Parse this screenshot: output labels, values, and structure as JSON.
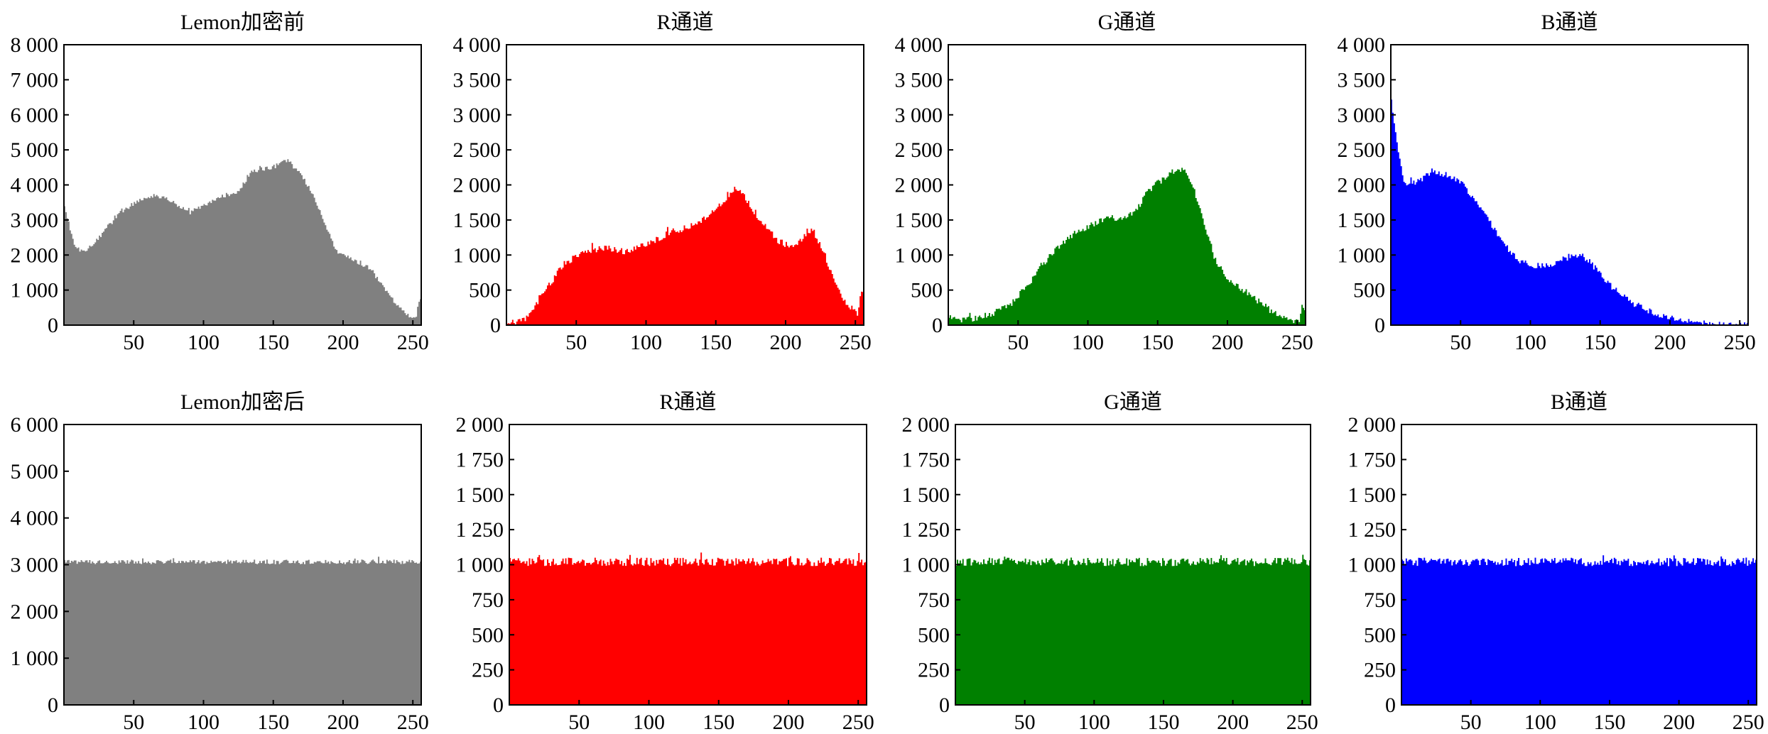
{
  "chart_data": [
    {
      "type": "histogram",
      "title": "Lemon加密前",
      "color": "#808080",
      "xlim": [
        0,
        256
      ],
      "ylim": [
        0,
        8000
      ],
      "xticks": [
        50,
        100,
        150,
        200,
        250
      ],
      "xtick_labels": [
        "50",
        "100",
        "150",
        "200",
        "250"
      ],
      "yticks": [
        0,
        1000,
        2000,
        3000,
        4000,
        5000,
        6000,
        7000,
        8000
      ],
      "ytick_labels": [
        "0",
        "1 000",
        "2 000",
        "3 000",
        "4 000",
        "5 000",
        "6 000",
        "7 000",
        "8 000"
      ],
      "profile": [
        [
          0,
          3400
        ],
        [
          3,
          3000
        ],
        [
          8,
          2200
        ],
        [
          15,
          2100
        ],
        [
          25,
          2500
        ],
        [
          40,
          3200
        ],
        [
          55,
          3600
        ],
        [
          65,
          3700
        ],
        [
          75,
          3600
        ],
        [
          90,
          3200
        ],
        [
          100,
          3400
        ],
        [
          115,
          3700
        ],
        [
          125,
          3800
        ],
        [
          135,
          4400
        ],
        [
          150,
          4500
        ],
        [
          160,
          4700
        ],
        [
          170,
          4300
        ],
        [
          180,
          3600
        ],
        [
          195,
          2100
        ],
        [
          210,
          1800
        ],
        [
          220,
          1600
        ],
        [
          230,
          1000
        ],
        [
          240,
          500
        ],
        [
          248,
          250
        ],
        [
          253,
          250
        ],
        [
          254,
          700
        ],
        [
          256,
          700
        ]
      ],
      "noise": 60
    },
    {
      "type": "histogram",
      "title": "R通道",
      "color": "#ff0000",
      "xlim": [
        0,
        256
      ],
      "ylim": [
        0,
        4000
      ],
      "xticks": [
        50,
        100,
        150,
        200,
        250
      ],
      "xtick_labels": [
        "50",
        "100",
        "150",
        "200",
        "250"
      ],
      "yticks": [
        0,
        500,
        1000,
        1500,
        2000,
        2500,
        3000,
        3500,
        4000
      ],
      "ytick_labels": [
        "0",
        "500",
        "1 000",
        "1 500",
        "2 000",
        "2 500",
        "3 000",
        "3 500",
        "4 000"
      ],
      "profile": [
        [
          0,
          0
        ],
        [
          5,
          20
        ],
        [
          15,
          100
        ],
        [
          25,
          400
        ],
        [
          40,
          850
        ],
        [
          55,
          1050
        ],
        [
          70,
          1100
        ],
        [
          85,
          1050
        ],
        [
          100,
          1150
        ],
        [
          115,
          1300
        ],
        [
          130,
          1400
        ],
        [
          145,
          1550
        ],
        [
          155,
          1750
        ],
        [
          163,
          1950
        ],
        [
          170,
          1850
        ],
        [
          180,
          1550
        ],
        [
          195,
          1200
        ],
        [
          205,
          1100
        ],
        [
          215,
          1300
        ],
        [
          220,
          1350
        ],
        [
          228,
          1000
        ],
        [
          235,
          600
        ],
        [
          245,
          250
        ],
        [
          252,
          150
        ],
        [
          254,
          450
        ],
        [
          256,
          450
        ]
      ],
      "noise": 45
    },
    {
      "type": "histogram",
      "title": "G通道",
      "color": "#008000",
      "xlim": [
        0,
        256
      ],
      "ylim": [
        0,
        4000
      ],
      "xticks": [
        50,
        100,
        150,
        200,
        250
      ],
      "xtick_labels": [
        "50",
        "100",
        "150",
        "200",
        "250"
      ],
      "yticks": [
        0,
        500,
        1000,
        1500,
        2000,
        2500,
        3000,
        3500,
        4000
      ],
      "ytick_labels": [
        "0",
        "500",
        "1 000",
        "1 500",
        "2 000",
        "2 500",
        "3 000",
        "3 500",
        "4 000"
      ],
      "profile": [
        [
          0,
          80
        ],
        [
          10,
          80
        ],
        [
          20,
          100
        ],
        [
          30,
          150
        ],
        [
          45,
          300
        ],
        [
          60,
          650
        ],
        [
          75,
          1050
        ],
        [
          90,
          1300
        ],
        [
          105,
          1450
        ],
        [
          115,
          1550
        ],
        [
          125,
          1500
        ],
        [
          135,
          1650
        ],
        [
          145,
          1950
        ],
        [
          155,
          2100
        ],
        [
          165,
          2250
        ],
        [
          172,
          2150
        ],
        [
          180,
          1700
        ],
        [
          190,
          1000
        ],
        [
          200,
          650
        ],
        [
          215,
          450
        ],
        [
          225,
          300
        ],
        [
          235,
          150
        ],
        [
          245,
          60
        ],
        [
          252,
          50
        ],
        [
          253,
          250
        ],
        [
          256,
          250
        ]
      ],
      "noise": 45
    },
    {
      "type": "histogram",
      "title": "B通道",
      "color": "#0000ff",
      "xlim": [
        0,
        256
      ],
      "ylim": [
        0,
        4000
      ],
      "xticks": [
        50,
        100,
        150,
        200,
        250
      ],
      "xtick_labels": [
        "50",
        "100",
        "150",
        "200",
        "250"
      ],
      "yticks": [
        0,
        500,
        1000,
        1500,
        2000,
        2500,
        3000,
        3500,
        4000
      ],
      "ytick_labels": [
        "0",
        "500",
        "1 000",
        "1 500",
        "2 000",
        "2 500",
        "3 000",
        "3 500",
        "4 000"
      ],
      "profile": [
        [
          0,
          3250
        ],
        [
          2,
          3000
        ],
        [
          5,
          2500
        ],
        [
          10,
          2000
        ],
        [
          20,
          2050
        ],
        [
          30,
          2200
        ],
        [
          40,
          2150
        ],
        [
          50,
          2050
        ],
        [
          60,
          1800
        ],
        [
          70,
          1500
        ],
        [
          80,
          1200
        ],
        [
          90,
          950
        ],
        [
          100,
          850
        ],
        [
          110,
          850
        ],
        [
          120,
          900
        ],
        [
          130,
          1000
        ],
        [
          138,
          980
        ],
        [
          145,
          850
        ],
        [
          155,
          600
        ],
        [
          170,
          350
        ],
        [
          185,
          200
        ],
        [
          200,
          100
        ],
        [
          215,
          50
        ],
        [
          230,
          20
        ],
        [
          245,
          10
        ],
        [
          256,
          0
        ]
      ],
      "noise": 45
    },
    {
      "type": "histogram",
      "title": "Lemon加密后",
      "color": "#808080",
      "xlim": [
        0,
        256
      ],
      "ylim": [
        0,
        6000
      ],
      "xticks": [
        50,
        100,
        150,
        200,
        250
      ],
      "xtick_labels": [
        "50",
        "100",
        "150",
        "200",
        "250"
      ],
      "yticks": [
        0,
        1000,
        2000,
        3000,
        4000,
        5000,
        6000
      ],
      "ytick_labels": [
        "0",
        "1 000",
        "2 000",
        "3 000",
        "4 000",
        "5 000",
        "6 000"
      ],
      "profile": [
        [
          0,
          3060
        ],
        [
          256,
          3060
        ]
      ],
      "noise": 50
    },
    {
      "type": "histogram",
      "title": "R通道",
      "color": "#ff0000",
      "xlim": [
        0,
        256
      ],
      "ylim": [
        0,
        2000
      ],
      "xticks": [
        50,
        100,
        150,
        200,
        250
      ],
      "xtick_labels": [
        "50",
        "100",
        "150",
        "200",
        "250"
      ],
      "yticks": [
        0,
        250,
        500,
        750,
        1000,
        1250,
        1500,
        1750,
        2000
      ],
      "ytick_labels": [
        "0",
        "250",
        "500",
        "750",
        "1 000",
        "1 250",
        "1 500",
        "1 750",
        "2 000"
      ],
      "profile": [
        [
          0,
          1020
        ],
        [
          256,
          1020
        ]
      ],
      "noise": 30
    },
    {
      "type": "histogram",
      "title": "G通道",
      "color": "#008000",
      "xlim": [
        0,
        256
      ],
      "ylim": [
        0,
        2000
      ],
      "xticks": [
        50,
        100,
        150,
        200,
        250
      ],
      "xtick_labels": [
        "50",
        "100",
        "150",
        "200",
        "250"
      ],
      "yticks": [
        0,
        250,
        500,
        750,
        1000,
        1250,
        1500,
        1750,
        2000
      ],
      "ytick_labels": [
        "0",
        "250",
        "500",
        "750",
        "1 000",
        "1 250",
        "1 500",
        "1 750",
        "2 000"
      ],
      "profile": [
        [
          0,
          1020
        ],
        [
          256,
          1020
        ]
      ],
      "noise": 30
    },
    {
      "type": "histogram",
      "title": "B通道",
      "color": "#0000ff",
      "xlim": [
        0,
        256
      ],
      "ylim": [
        0,
        2000
      ],
      "xticks": [
        50,
        100,
        150,
        200,
        250
      ],
      "xtick_labels": [
        "50",
        "100",
        "150",
        "200",
        "250"
      ],
      "yticks": [
        0,
        250,
        500,
        750,
        1000,
        1250,
        1500,
        1750,
        2000
      ],
      "ytick_labels": [
        "0",
        "250",
        "500",
        "750",
        "1 000",
        "1 250",
        "1 500",
        "1 750",
        "2 000"
      ],
      "profile": [
        [
          0,
          1020
        ],
        [
          256,
          1020
        ]
      ],
      "noise": 30
    }
  ]
}
